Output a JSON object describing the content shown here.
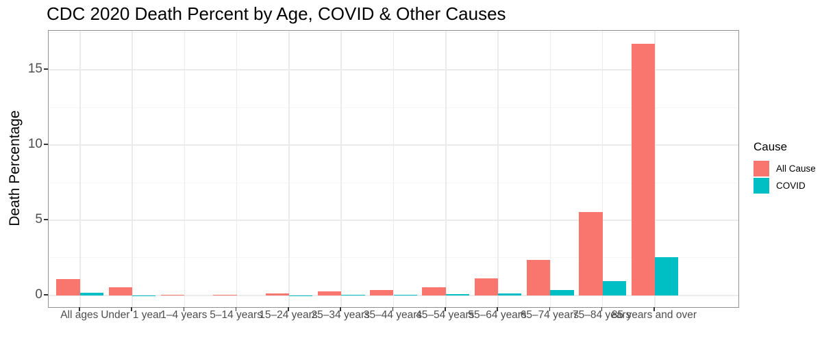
{
  "title": "CDC 2020 Death Percent by Age, COVID & Other Causes",
  "legend": {
    "title": "Cause",
    "entries": [
      {
        "label": "All Cause",
        "color": "#F8766D"
      },
      {
        "label": "COVID",
        "color": "#00BFC4"
      }
    ]
  },
  "colors": {
    "all_cause": "#F8766D",
    "covid": "#00BFC4",
    "grid_major": "#EBEBEB",
    "grid_minor": "#F4F4F4",
    "panel_border": "#919191",
    "tick_text": "#4d4d4d"
  },
  "chart_data": {
    "type": "bar",
    "title": "CDC 2020 Death Percent by Age, COVID & Other Causes",
    "xlabel": "",
    "ylabel": "Death Percentage",
    "categories": [
      "All ages",
      "Under 1 year",
      "1–4 years",
      "5–14 years",
      "15–24 years",
      "25–34 years",
      "35–44 years",
      "45–54 years",
      "55–64 years",
      "65–74 years",
      "75–84 years",
      "85 years and over"
    ],
    "series": [
      {
        "name": "All Cause",
        "color": "#F8766D",
        "values": [
          1.1,
          0.56,
          0.02,
          0.03,
          0.12,
          0.25,
          0.34,
          0.52,
          1.12,
          2.35,
          5.56,
          16.75
        ]
      },
      {
        "name": "COVID",
        "color": "#00BFC4",
        "values": [
          0.16,
          0.01,
          0.0,
          0.0,
          0.01,
          0.02,
          0.03,
          0.08,
          0.14,
          0.37,
          0.97,
          2.53
        ]
      }
    ],
    "ylim": [
      -0.78,
      17.6
    ],
    "y_major_ticks": [
      0,
      5,
      10,
      15
    ],
    "y_minor_ticks": [
      2.5,
      7.5,
      12.5,
      17.5
    ],
    "grid": true,
    "legend_position": "right",
    "bar_mode": "dodge"
  }
}
